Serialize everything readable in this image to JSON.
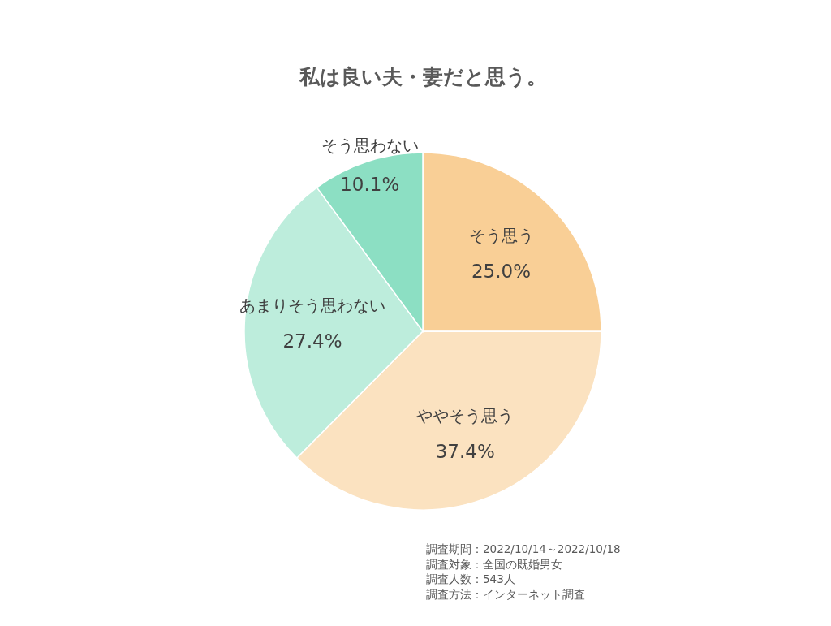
{
  "chart_data": {
    "type": "pie",
    "title": "私は良い夫・妻だと思う。",
    "categories": [
      "そう思う",
      "ややそう思う",
      "あまりそう思わない",
      "そう思わない"
    ],
    "values": [
      25.0,
      37.4,
      27.4,
      10.1
    ],
    "value_labels": [
      "25.0%",
      "37.4%",
      "27.4%",
      "10.1%"
    ],
    "colors": [
      "#f9cf96",
      "#fbe2c0",
      "#bdeddc",
      "#8cdfc3"
    ],
    "annotations": [
      "調査期間：2022/10/14～2022/10/18",
      "調査対象：全国の既婚男女",
      "調査人数：543人",
      "調査方法：インターネット調査"
    ]
  }
}
